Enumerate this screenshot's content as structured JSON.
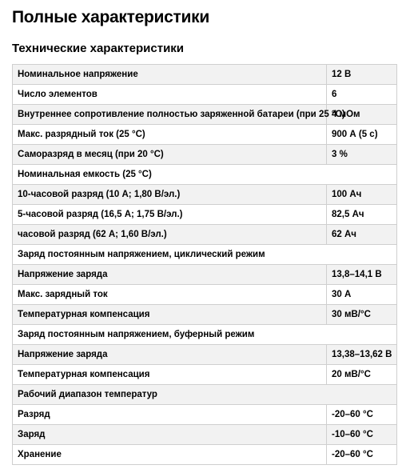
{
  "page": {
    "title": "Полные характеристики",
    "section_title": "Технические характеристики"
  },
  "rows": [
    {
      "label": "Номинальное напряжение",
      "value": "12 В"
    },
    {
      "label": "Число элементов",
      "value": "6"
    },
    {
      "label": "Внутреннее сопротивление полностью заряженной батареи (при 25 °С)",
      "value": "4 мОм"
    },
    {
      "label": "Макс. разрядный ток (25 °С)",
      "value": "900 А (5 с)"
    },
    {
      "label": "Саморазряд в месяц (при 20 °С)",
      "value": "3 %"
    },
    {
      "label": "Номинальная емкость (25 °С)",
      "value": "",
      "header": true
    },
    {
      "label": "10-часовой разряд (10 А; 1,80 В/эл.)",
      "value": "100 Ач"
    },
    {
      "label": "5-часовой разряд (16,5 А; 1,75 В/эл.)",
      "value": "82,5 Ач"
    },
    {
      "label": "часовой разряд (62 А; 1,60 В/эл.)",
      "value": "62 Ач"
    },
    {
      "label": "Заряд постоянным напряжением, циклический режим",
      "value": "",
      "header": true
    },
    {
      "label": "Напряжение заряда",
      "value": "13,8–14,1 В"
    },
    {
      "label": "Макс. зарядный ток",
      "value": "30 А"
    },
    {
      "label": "Температурная компенсация",
      "value": "30 мВ/°С"
    },
    {
      "label": "Заряд постоянным напряжением, буферный режим",
      "value": "",
      "header": true
    },
    {
      "label": "Напряжение заряда",
      "value": "13,38–13,62 В"
    },
    {
      "label": "Температурная компенсация",
      "value": "20 мВ/°С"
    },
    {
      "label": "Рабочий диапазон температур",
      "value": "",
      "header": true
    },
    {
      "label": "Разряд",
      "value": "-20–60 °С"
    },
    {
      "label": "Заряд",
      "value": "-10–60 °С"
    },
    {
      "label": "Хранение",
      "value": "-20–60 °С"
    }
  ]
}
